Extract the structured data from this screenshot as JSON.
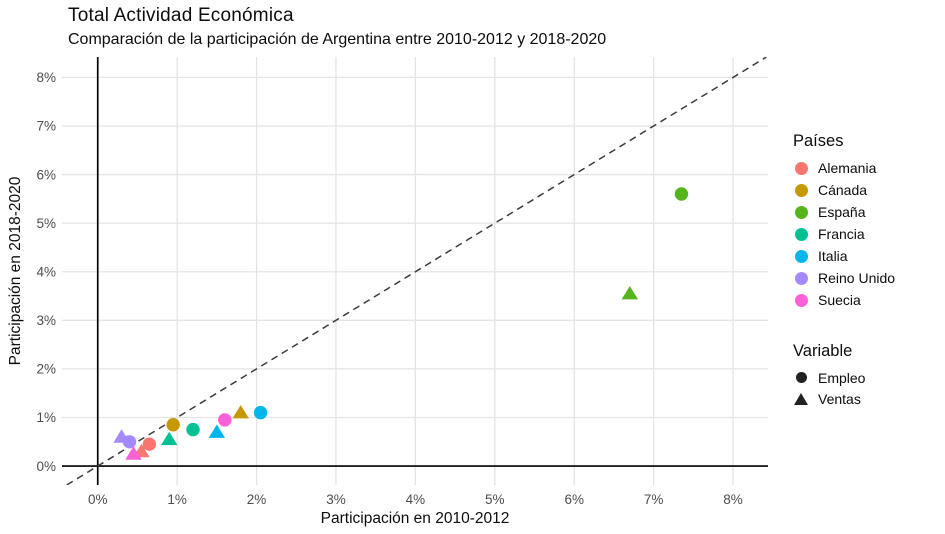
{
  "accent_colors": {
    "grid": "#E4E4E4",
    "zero_line": "#000000",
    "identity_line": "#3C3C3C",
    "tick_text": "#4D4D4D",
    "axis_title_text": "#0d0d0d",
    "variable_swatch": "#222222"
  },
  "legend": {
    "countries_title": "Países",
    "variable_title": "Variable",
    "variables": [
      {
        "label": "Empleo",
        "shape": "circle"
      },
      {
        "label": "Ventas",
        "shape": "triangle"
      }
    ]
  },
  "chart_data": {
    "type": "scatter",
    "title": "Total Actividad Económica",
    "subtitle": "Comparación de la participación de Argentina entre 2010-2012 y 2018-2020",
    "xlabel": "Participación en 2010-2012",
    "ylabel": "Participación en 2018-2020",
    "xlim": [
      -0.45,
      8.44
    ],
    "ylim": [
      -0.39,
      8.42
    ],
    "x_ticks": [
      0,
      1,
      2,
      3,
      4,
      5,
      6,
      7,
      8
    ],
    "y_ticks": [
      0,
      1,
      2,
      3,
      4,
      5,
      6,
      7,
      8
    ],
    "tick_suffix": "%",
    "grid": true,
    "legend_position": "right",
    "zero_lines": true,
    "identity_line": {
      "style": "dashed",
      "equation": "y = x"
    },
    "shape_by_variable": {
      "Empleo": "circle",
      "Ventas": "triangle"
    },
    "series": [
      {
        "name": "Alemania",
        "color": "#F8766D",
        "points": [
          {
            "variable": "Empleo",
            "shape": "circle",
            "x": 0.65,
            "y": 0.45
          },
          {
            "variable": "Ventas",
            "shape": "triangle",
            "x": 0.55,
            "y": 0.3
          }
        ]
      },
      {
        "name": "Cánada",
        "color": "#C49A00",
        "points": [
          {
            "variable": "Empleo",
            "shape": "circle",
            "x": 0.95,
            "y": 0.85
          },
          {
            "variable": "Ventas",
            "shape": "triangle",
            "x": 1.8,
            "y": 1.1
          }
        ]
      },
      {
        "name": "España",
        "color": "#56B41C",
        "points": [
          {
            "variable": "Empleo",
            "shape": "circle",
            "x": 7.35,
            "y": 5.6
          },
          {
            "variable": "Ventas",
            "shape": "triangle",
            "x": 6.7,
            "y": 3.55
          }
        ]
      },
      {
        "name": "Francia",
        "color": "#00C094",
        "points": [
          {
            "variable": "Empleo",
            "shape": "circle",
            "x": 1.2,
            "y": 0.75
          },
          {
            "variable": "Ventas",
            "shape": "triangle",
            "x": 0.9,
            "y": 0.55
          }
        ]
      },
      {
        "name": "Italia",
        "color": "#00B6EB",
        "points": [
          {
            "variable": "Empleo",
            "shape": "circle",
            "x": 2.05,
            "y": 1.1
          },
          {
            "variable": "Ventas",
            "shape": "triangle",
            "x": 1.5,
            "y": 0.7
          }
        ]
      },
      {
        "name": "Reino Unido",
        "color": "#A58AFF",
        "points": [
          {
            "variable": "Empleo",
            "shape": "circle",
            "x": 0.4,
            "y": 0.5
          },
          {
            "variable": "Ventas",
            "shape": "triangle",
            "x": 0.3,
            "y": 0.6
          }
        ]
      },
      {
        "name": "Suecia",
        "color": "#FB61D7",
        "points": [
          {
            "variable": "Empleo",
            "shape": "circle",
            "x": 1.6,
            "y": 0.95
          },
          {
            "variable": "Ventas",
            "shape": "triangle",
            "x": 0.45,
            "y": 0.25
          }
        ]
      }
    ]
  }
}
